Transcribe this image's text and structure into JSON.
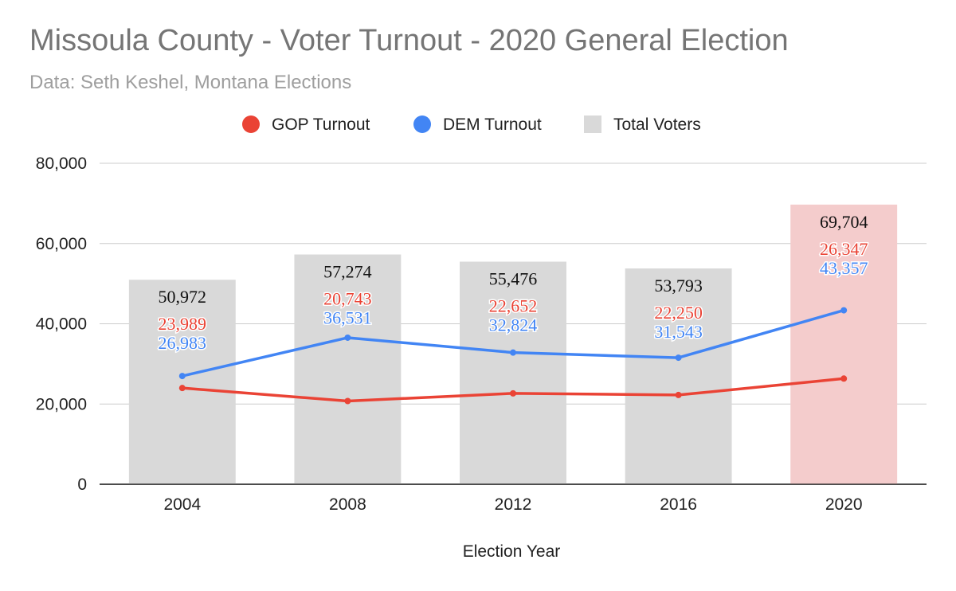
{
  "chart_data": {
    "type": "bar",
    "title": "Missoula County - Voter Turnout - 2020 General Election",
    "subtitle": "Data: Seth Keshel, Montana Elections",
    "xlabel": "Election Year",
    "ylabel": "",
    "ylim": [
      0,
      80000
    ],
    "yticks": [
      0,
      20000,
      40000,
      60000,
      80000
    ],
    "ytick_labels": [
      "0",
      "20,000",
      "40,000",
      "60,000",
      "80,000"
    ],
    "grid": true,
    "legend_position": "top",
    "categories": [
      "2004",
      "2008",
      "2012",
      "2016",
      "2020"
    ],
    "series": [
      {
        "name": "GOP Turnout",
        "kind": "line",
        "color": "#ea4335",
        "values": [
          23989,
          20743,
          22652,
          22250,
          26347
        ],
        "labels": [
          "23,989",
          "20,743",
          "22,652",
          "22,250",
          "26,347"
        ]
      },
      {
        "name": "DEM Turnout",
        "kind": "line",
        "color": "#4285f4",
        "values": [
          26983,
          36531,
          32824,
          31543,
          43357
        ],
        "labels": [
          "26,983",
          "36,531",
          "32,824",
          "31,543",
          "43,357"
        ]
      },
      {
        "name": "Total Voters",
        "kind": "bar",
        "color": "#d9d9d9",
        "highlight_color": "#f4cccc",
        "highlight_index": 4,
        "values": [
          50972,
          57274,
          55476,
          53793,
          69704
        ],
        "labels": [
          "50,972",
          "57,274",
          "55,476",
          "53,793",
          "69,704"
        ]
      }
    ]
  }
}
